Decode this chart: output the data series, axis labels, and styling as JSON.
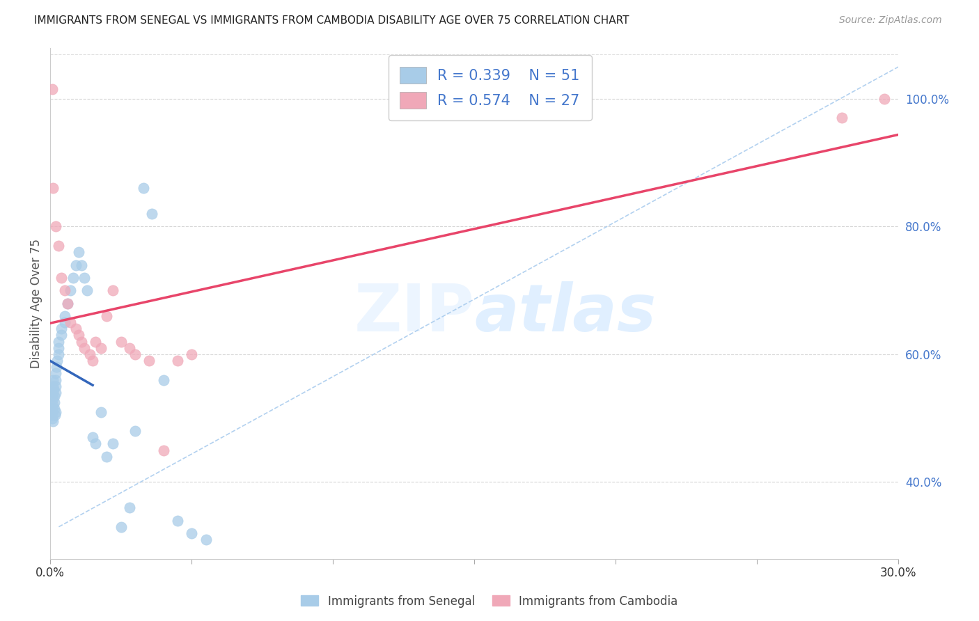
{
  "title": "IMMIGRANTS FROM SENEGAL VS IMMIGRANTS FROM CAMBODIA DISABILITY AGE OVER 75 CORRELATION CHART",
  "source": "Source: ZipAtlas.com",
  "ylabel": "Disability Age Over 75",
  "legend_labels": [
    "Immigrants from Senegal",
    "Immigrants from Cambodia"
  ],
  "R_senegal": 0.339,
  "N_senegal": 51,
  "R_cambodia": 0.574,
  "N_cambodia": 27,
  "color_senegal": "#a8cce8",
  "color_cambodia": "#f0a8b8",
  "trendline_color_senegal": "#3366bb",
  "trendline_color_cambodia": "#e8456a",
  "diagonal_color": "#aaccee",
  "text_blue": "#4477cc",
  "xlim": [
    0.0,
    0.3
  ],
  "ylim": [
    0.28,
    1.08
  ],
  "right_yticks": [
    0.4,
    0.6,
    0.8,
    1.0
  ],
  "right_yticklabels": [
    "40.0%",
    "60.0%",
    "80.0%",
    "100.0%"
  ],
  "bg_color": "#ffffff",
  "grid_color": "#cccccc",
  "title_color": "#222222",
  "watermark": "ZIPatlas",
  "senegal_x": [
    0.0005,
    0.0006,
    0.0007,
    0.0008,
    0.0009,
    0.001,
    0.001,
    0.001,
    0.001,
    0.001,
    0.0012,
    0.0013,
    0.0014,
    0.0015,
    0.0016,
    0.0018,
    0.002,
    0.002,
    0.002,
    0.002,
    0.0022,
    0.0025,
    0.003,
    0.003,
    0.003,
    0.004,
    0.004,
    0.005,
    0.005,
    0.006,
    0.007,
    0.008,
    0.009,
    0.01,
    0.011,
    0.012,
    0.013,
    0.015,
    0.016,
    0.018,
    0.02,
    0.022,
    0.025,
    0.028,
    0.03,
    0.033,
    0.036,
    0.04,
    0.045,
    0.05,
    0.055
  ],
  "senegal_y": [
    0.505,
    0.51,
    0.515,
    0.5,
    0.495,
    0.52,
    0.53,
    0.54,
    0.55,
    0.56,
    0.545,
    0.535,
    0.525,
    0.515,
    0.505,
    0.51,
    0.57,
    0.56,
    0.55,
    0.54,
    0.58,
    0.59,
    0.62,
    0.61,
    0.6,
    0.64,
    0.63,
    0.66,
    0.65,
    0.68,
    0.7,
    0.72,
    0.74,
    0.76,
    0.74,
    0.72,
    0.7,
    0.47,
    0.46,
    0.51,
    0.44,
    0.46,
    0.33,
    0.36,
    0.48,
    0.86,
    0.82,
    0.56,
    0.34,
    0.32,
    0.31
  ],
  "cambodia_x": [
    0.0008,
    0.001,
    0.002,
    0.003,
    0.004,
    0.005,
    0.006,
    0.007,
    0.009,
    0.01,
    0.011,
    0.012,
    0.014,
    0.016,
    0.018,
    0.02,
    0.022,
    0.025,
    0.028,
    0.03,
    0.035,
    0.04,
    0.045,
    0.05,
    0.015,
    0.28,
    0.295
  ],
  "cambodia_y": [
    1.015,
    0.86,
    0.8,
    0.77,
    0.72,
    0.7,
    0.68,
    0.65,
    0.64,
    0.63,
    0.62,
    0.61,
    0.6,
    0.62,
    0.61,
    0.66,
    0.7,
    0.62,
    0.61,
    0.6,
    0.59,
    0.45,
    0.59,
    0.6,
    0.59,
    0.97,
    1.0
  ]
}
